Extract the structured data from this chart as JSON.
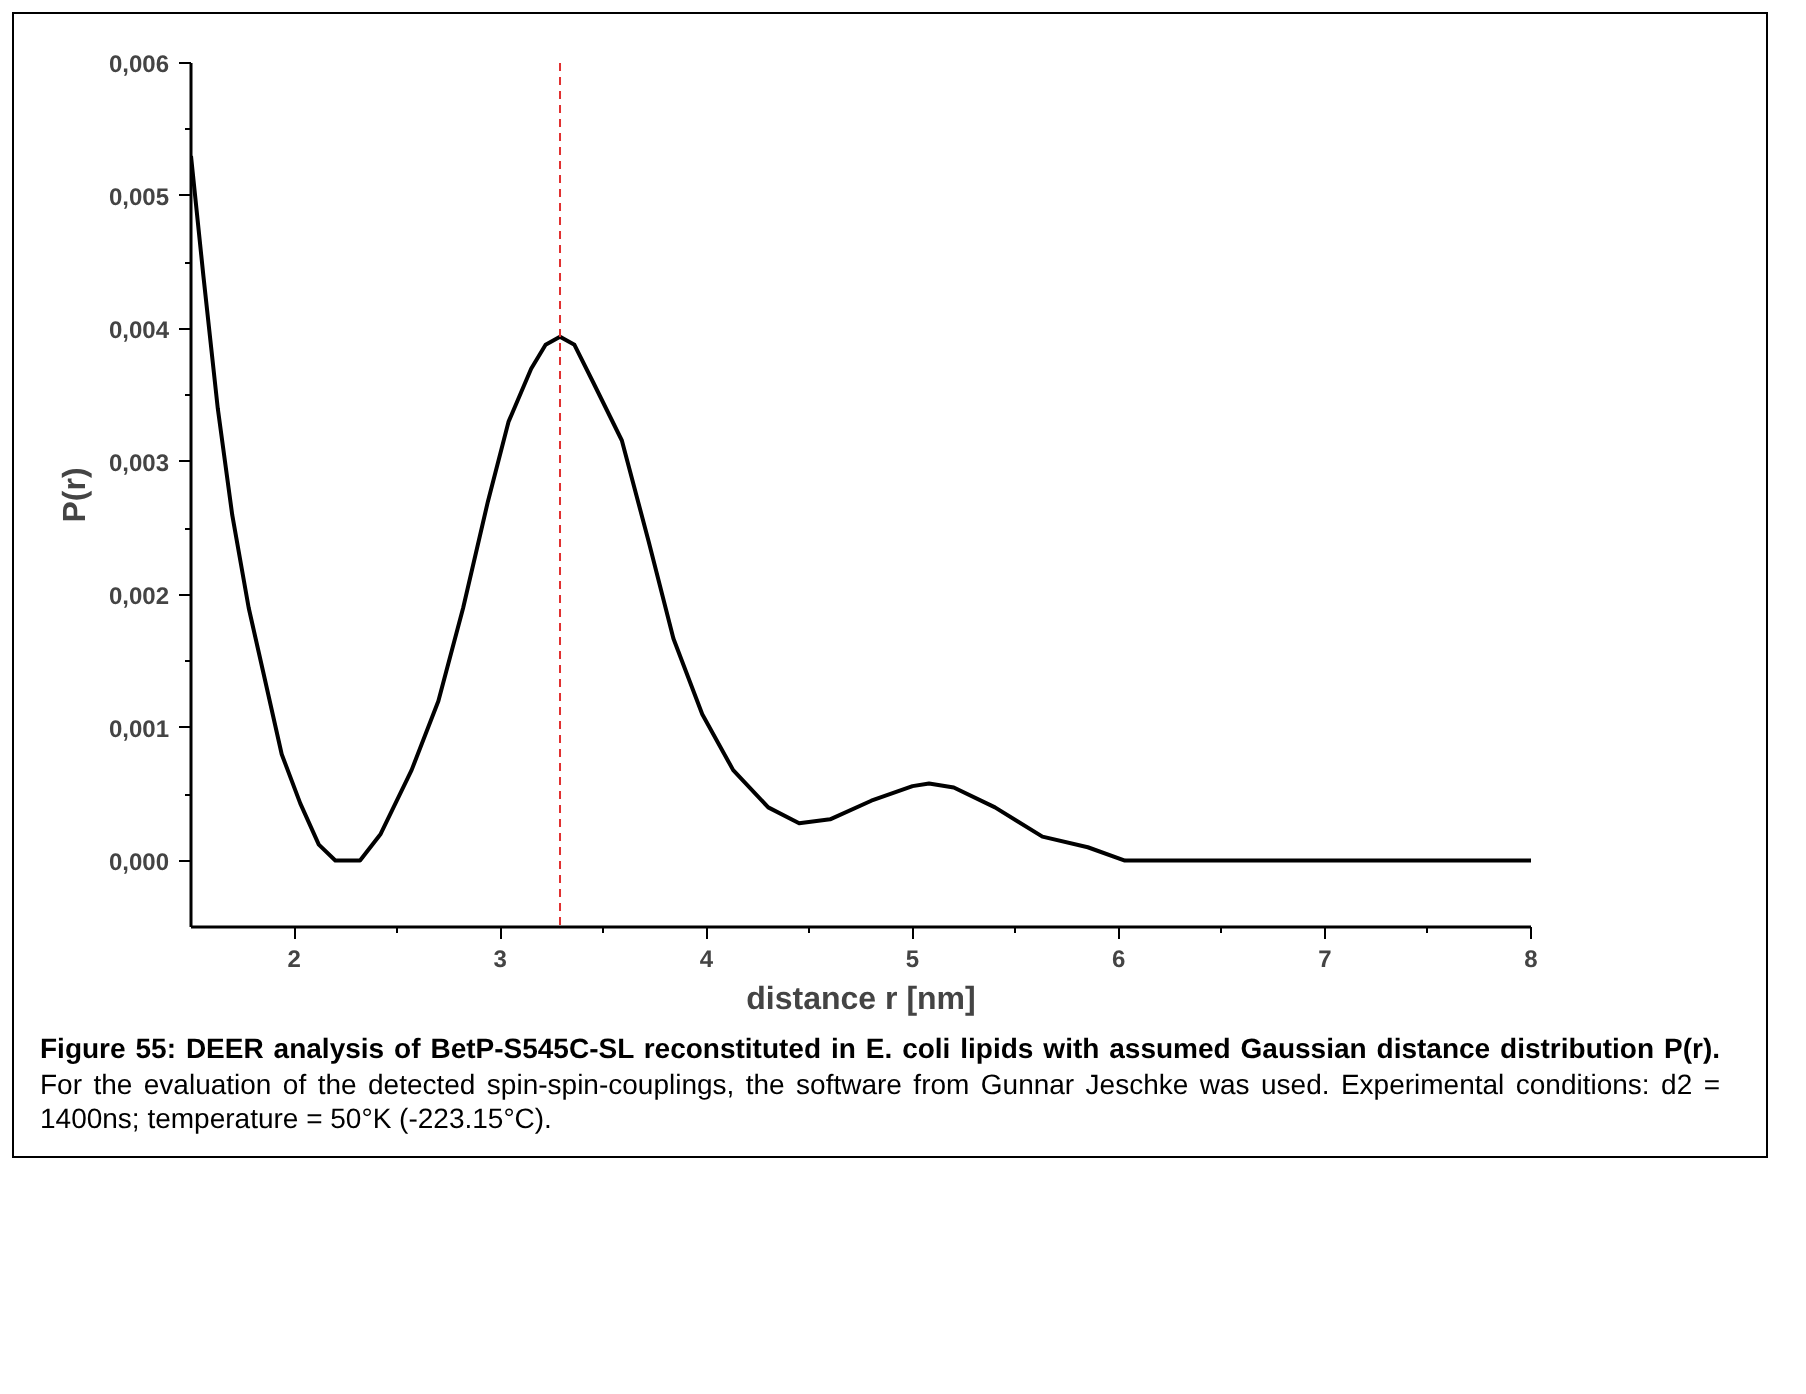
{
  "chart_data": {
    "type": "line",
    "title": "Figure 55: DEER analysis of BetP-S545C-SL reconstituted in E. coli lipids with assumed Gaussian distance distribution P(r).",
    "annotations": [
      "For the evaluation of the detected spin-spin-couplings, the software from Gunnar Jeschke was used. Experimental conditions: d2 = 1400ns; temperature = 50°K (-223.15°C)."
    ],
    "xlabel": "distance r [nm]",
    "ylabel": "P(r)",
    "x": [
      1.5,
      1.56,
      1.63,
      1.7,
      1.78,
      1.85,
      1.94,
      2.03,
      2.12,
      2.2,
      2.25,
      2.32,
      2.42,
      2.57,
      2.7,
      2.82,
      2.94,
      3.04,
      3.15,
      3.22,
      3.29,
      3.36,
      3.45,
      3.59,
      3.72,
      3.84,
      3.98,
      4.13,
      4.3,
      4.45,
      4.6,
      4.8,
      5.0,
      5.08,
      5.2,
      5.4,
      5.63,
      5.85,
      6.03,
      7.0,
      8.0
    ],
    "series": [
      {
        "color": "#000000",
        "values": [
          0.0053,
          0.0044,
          0.0034,
          0.0026,
          0.0019,
          0.00142,
          0.0008,
          0.00043,
          0.00012,
          0.0,
          0.0,
          0.0,
          0.0002,
          0.00068,
          0.0012,
          0.0019,
          0.0027,
          0.0033,
          0.0037,
          0.00388,
          0.00394,
          0.00388,
          0.0036,
          0.00316,
          0.0024,
          0.00167,
          0.0011,
          0.00068,
          0.0004,
          0.00028,
          0.00031,
          0.00045,
          0.00056,
          0.00058,
          0.00055,
          0.0004,
          0.00018,
          0.0001,
          0.0,
          0.0,
          0.0
        ]
      }
    ],
    "xlim": [
      1.5,
      8
    ],
    "ylim": [
      -0.0005,
      0.006
    ],
    "xticks": [
      2,
      3,
      4,
      5,
      6,
      7,
      8
    ],
    "yticks": [
      {
        "value": 0.0,
        "label": "0,000"
      },
      {
        "value": 0.001,
        "label": "0,001"
      },
      {
        "value": 0.002,
        "label": "0,002"
      },
      {
        "value": 0.003,
        "label": "0,003"
      },
      {
        "value": 0.004,
        "label": "0,004"
      },
      {
        "value": 0.005,
        "label": "0,005"
      },
      {
        "value": 0.006,
        "label": "0,006"
      }
    ],
    "ref_lines": [
      {
        "axis": "x",
        "value": 3.29,
        "color": "#e03030",
        "line_style": "dashed"
      }
    ],
    "line_style": "solid"
  }
}
